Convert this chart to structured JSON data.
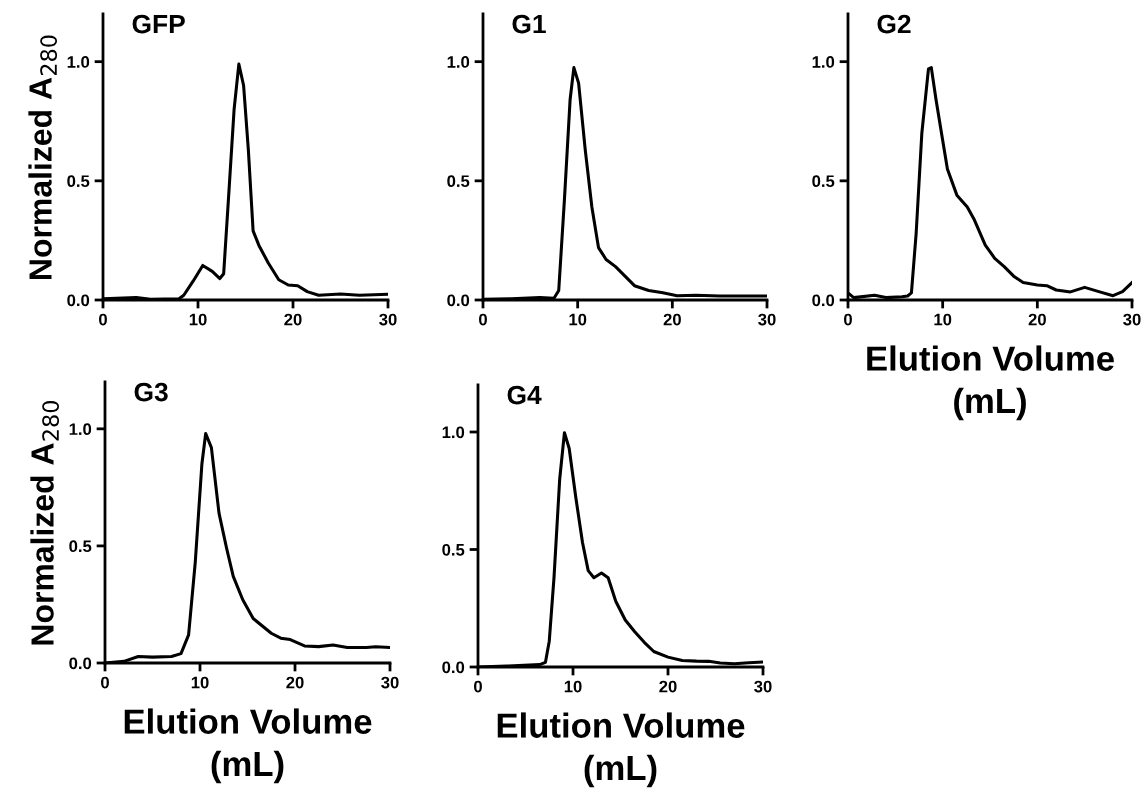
{
  "chart_data": [
    {
      "type": "line",
      "title": "GFP",
      "ylabel": "Normalized A$_{280}$",
      "xlim": [
        0,
        30
      ],
      "ylim": [
        0,
        1.2
      ],
      "xticks": [
        0,
        10,
        20,
        30
      ],
      "yticks": [
        {
          "value": 0,
          "label": "0.0"
        },
        {
          "value": 0.5,
          "label": "0.5"
        },
        {
          "value": 1,
          "label": "1.0"
        }
      ],
      "grid": false,
      "series": [
        {
          "color": "#000000",
          "x": [
            0,
            3.5,
            5,
            8,
            8.5,
            9.5,
            10.5,
            11.5,
            12.3,
            12.7,
            13.2,
            13.8,
            14.3,
            14.8,
            15.3,
            15.8,
            16.4,
            17.4,
            18.5,
            19.5,
            20.5,
            21.5,
            22.7,
            25,
            27,
            30
          ],
          "values": [
            0.005,
            0.01,
            0.003,
            0.005,
            0.02,
            0.08,
            0.145,
            0.12,
            0.09,
            0.11,
            0.42,
            0.8,
            0.99,
            0.9,
            0.63,
            0.29,
            0.23,
            0.155,
            0.085,
            0.063,
            0.06,
            0.035,
            0.02,
            0.025,
            0.02,
            0.024
          ]
        }
      ]
    },
    {
      "type": "line",
      "title": "G1",
      "xlim": [
        0,
        30
      ],
      "ylim": [
        0,
        1.2
      ],
      "xticks": [
        0,
        10,
        20,
        30
      ],
      "yticks": [
        {
          "value": 0,
          "label": "0.0"
        },
        {
          "value": 0.5,
          "label": "0.5"
        },
        {
          "value": 1,
          "label": "1.0"
        }
      ],
      "grid": false,
      "series": [
        {
          "color": "#000000",
          "x": [
            0,
            3,
            6,
            7.5,
            8,
            8.6,
            9.2,
            9.6,
            10.1,
            10.8,
            11.5,
            12.2,
            13,
            14,
            15,
            16,
            17.5,
            19,
            20.5,
            22.5,
            25,
            30
          ],
          "values": [
            0.003,
            0.005,
            0.01,
            0.007,
            0.04,
            0.42,
            0.84,
            0.975,
            0.91,
            0.63,
            0.39,
            0.22,
            0.17,
            0.14,
            0.1,
            0.06,
            0.04,
            0.03,
            0.018,
            0.02,
            0.017,
            0.017
          ]
        }
      ]
    },
    {
      "type": "line",
      "title": "G2",
      "xlabel": "Elution Volume\n(mL)",
      "xlim": [
        0,
        30
      ],
      "ylim": [
        0,
        1.2
      ],
      "xticks": [
        0,
        10,
        20,
        30
      ],
      "yticks": [
        {
          "value": 0,
          "label": "0.0"
        },
        {
          "value": 0.5,
          "label": "0.5"
        },
        {
          "value": 1,
          "label": "1.0"
        }
      ],
      "grid": false,
      "series": [
        {
          "color": "#000000",
          "x": [
            0,
            0.6,
            2.8,
            4,
            5.7,
            6.3,
            6.7,
            7.2,
            7.8,
            8.5,
            8.8,
            9.3,
            10,
            10.5,
            11.5,
            12.6,
            13.3,
            14.5,
            15.5,
            16.5,
            17.5,
            18.5,
            20,
            21,
            22,
            23.5,
            25,
            26.5,
            28,
            29,
            30
          ],
          "values": [
            0.03,
            0.01,
            0.02,
            0.01,
            0.014,
            0.017,
            0.03,
            0.28,
            0.7,
            0.97,
            0.975,
            0.84,
            0.67,
            0.55,
            0.44,
            0.39,
            0.34,
            0.23,
            0.175,
            0.14,
            0.1,
            0.073,
            0.063,
            0.06,
            0.042,
            0.034,
            0.053,
            0.035,
            0.018,
            0.035,
            0.073
          ]
        }
      ]
    },
    {
      "type": "line",
      "title": "G3",
      "ylabel": "Normalized A$_{280}$",
      "xlabel": "Elution Volume\n(mL)",
      "xlim": [
        0,
        30
      ],
      "ylim": [
        0,
        1.2
      ],
      "xticks": [
        0,
        10,
        20,
        30
      ],
      "yticks": [
        {
          "value": 0,
          "label": "0.0"
        },
        {
          "value": 0.5,
          "label": "0.5"
        },
        {
          "value": 1,
          "label": "1.0"
        }
      ],
      "grid": false,
      "series": [
        {
          "color": "#000000",
          "x": [
            0,
            2,
            3.5,
            5,
            7,
            8,
            8.8,
            9.5,
            10.2,
            10.6,
            11.2,
            12,
            12.8,
            13.5,
            14.5,
            15.6,
            16.5,
            17.5,
            18.5,
            19.5,
            21,
            22.5,
            24,
            25.5,
            27.5,
            28.5,
            30
          ],
          "values": [
            0,
            0.007,
            0.028,
            0.025,
            0.028,
            0.04,
            0.12,
            0.43,
            0.85,
            0.98,
            0.92,
            0.64,
            0.49,
            0.37,
            0.27,
            0.19,
            0.16,
            0.127,
            0.106,
            0.1,
            0.073,
            0.07,
            0.077,
            0.066,
            0.066,
            0.069,
            0.066
          ]
        }
      ]
    },
    {
      "type": "line",
      "title": "G4",
      "xlabel": "Elution Volume\n(mL)",
      "xlim": [
        0,
        30
      ],
      "ylim": [
        0,
        1.2
      ],
      "xticks": [
        0,
        10,
        20,
        30
      ],
      "yticks": [
        {
          "value": 0,
          "label": "0.0"
        },
        {
          "value": 0.5,
          "label": "0.5"
        },
        {
          "value": 1,
          "label": "1.0"
        }
      ],
      "grid": false,
      "series": [
        {
          "color": "#000000",
          "x": [
            0,
            3,
            6.5,
            7.1,
            7.5,
            8,
            8.6,
            9.1,
            9.6,
            10.3,
            11,
            11.6,
            12.2,
            13,
            13.7,
            14.5,
            15.5,
            16.5,
            17.5,
            18.5,
            20,
            21.5,
            23,
            24.3,
            25.5,
            27,
            28.5,
            30
          ],
          "values": [
            0,
            0.004,
            0.01,
            0.02,
            0.11,
            0.38,
            0.8,
            0.997,
            0.93,
            0.72,
            0.53,
            0.41,
            0.38,
            0.4,
            0.38,
            0.28,
            0.2,
            0.15,
            0.105,
            0.066,
            0.042,
            0.028,
            0.025,
            0.024,
            0.017,
            0.014,
            0.018,
            0.021
          ]
        }
      ]
    }
  ]
}
